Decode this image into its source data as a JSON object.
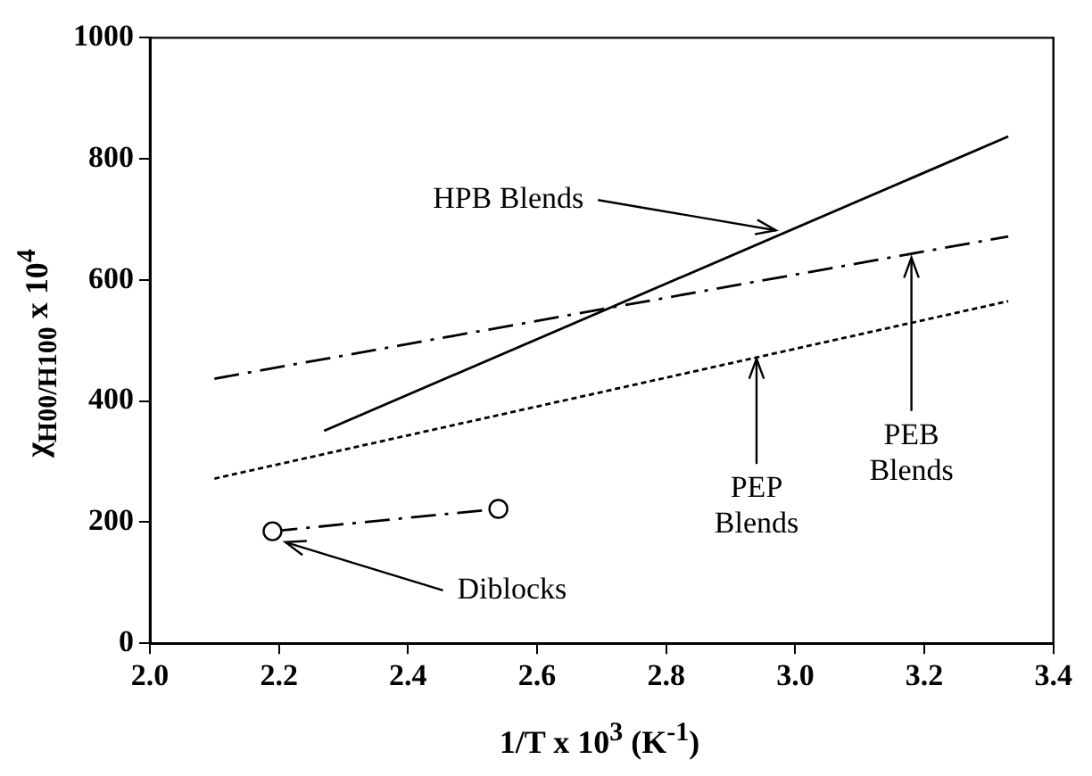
{
  "chart_data": {
    "type": "line",
    "xlabel": "1/T x 10$^{3}$ (K$^{-1}$)",
    "ylabel": "χ$_{H00/H100}$ x 10$^{4}$",
    "xlim": [
      2.0,
      3.4
    ],
    "xticks": [
      {
        "value": 2,
        "label": "2.0"
      },
      2.2,
      2.4,
      2.6,
      2.8,
      {
        "value": 3,
        "label": "3.0"
      },
      3.2,
      3.4
    ],
    "ylim": [
      0,
      1000
    ],
    "yticks": [
      0,
      200,
      400,
      600,
      800,
      1000
    ],
    "grid": false,
    "legend": false,
    "series": [
      {
        "color": "#000000",
        "x": [
          2.27,
          3.33
        ],
        "values": [
          351,
          837
        ],
        "line_style": "solid",
        "marker": "none"
      },
      {
        "color": "#000000",
        "x": [
          2.1,
          3.33
        ],
        "values": [
          437,
          672
        ],
        "line_style": "dashed",
        "marker": "none"
      },
      {
        "color": "#000000",
        "x": [
          2.1,
          3.33
        ],
        "values": [
          272,
          565
        ],
        "line_style": "dotted",
        "marker": "none"
      },
      {
        "color": "#000000",
        "x": [
          2.19,
          2.54
        ],
        "values": [
          185,
          222
        ],
        "line_style": "dashed",
        "marker": "circle"
      }
    ],
    "annotations": [
      {
        "text": "HPB Blends",
        "x": 2.97,
        "y": 682
      },
      {
        "text": "PEB\nBlends",
        "x": 3.18,
        "y": 637
      },
      {
        "text": "PEP\nBlends",
        "x": 2.94,
        "y": 470
      },
      {
        "text": "Diblocks",
        "x": 2.21,
        "y": 167
      }
    ]
  }
}
